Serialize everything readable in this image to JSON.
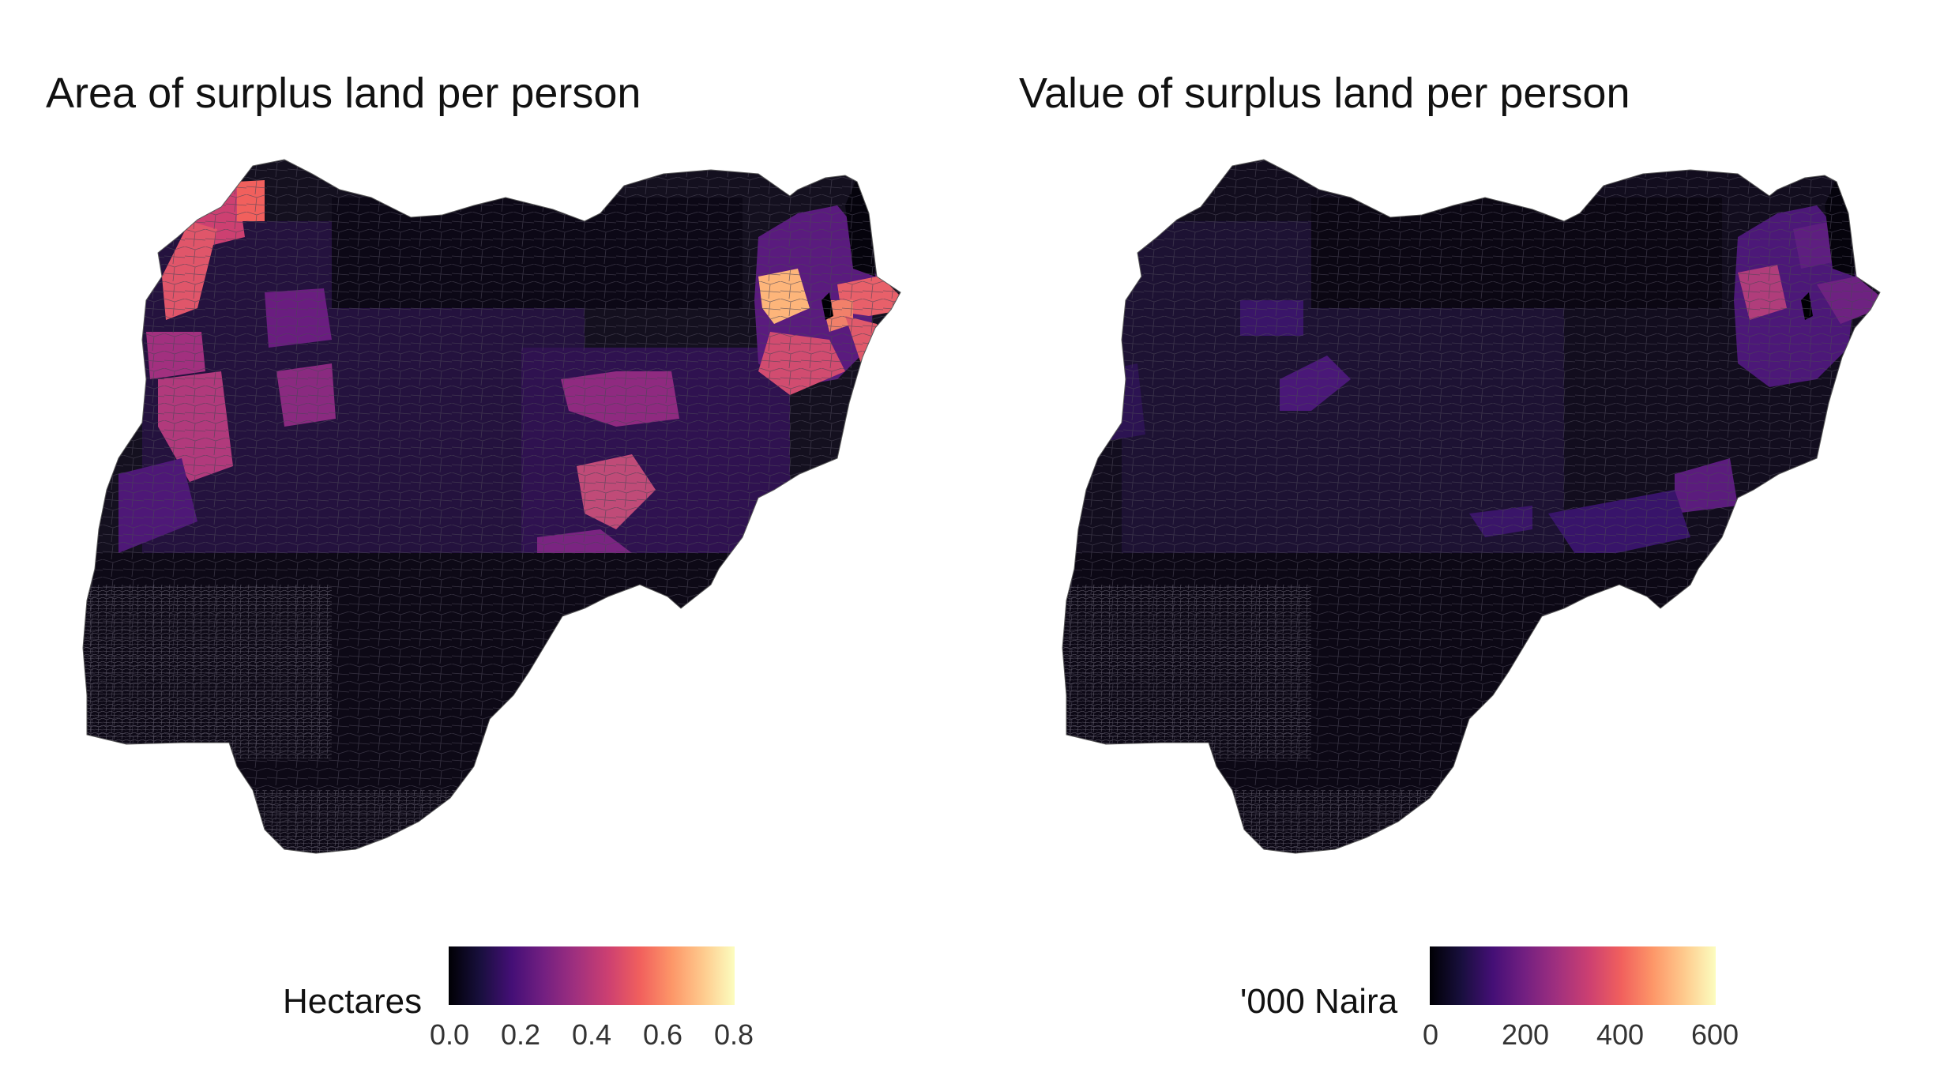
{
  "left_map": {
    "title": "Area of surplus land per person",
    "legend": {
      "title": "Hectares",
      "ticks": [
        "0.0",
        "0.2",
        "0.4",
        "0.6",
        "0.8"
      ],
      "tick_values": [
        0.0,
        0.2,
        0.4,
        0.6,
        0.8
      ],
      "range": [
        0.0,
        0.8
      ]
    },
    "palette": "magma"
  },
  "right_map": {
    "title": "Value of surplus land per person",
    "legend": {
      "title": "'000 Naira",
      "ticks": [
        "0",
        "200",
        "400",
        "600"
      ],
      "tick_values": [
        0,
        200,
        400,
        600
      ],
      "range": [
        0,
        600
      ]
    },
    "palette": "magma"
  },
  "colors": {
    "magma": [
      "#000004",
      "#180f3d",
      "#440f76",
      "#721f81",
      "#9e2f7f",
      "#cd4071",
      "#f1605d",
      "#fd9668",
      "#feca8d",
      "#fcfdbf"
    ],
    "boundary": "#5a5a5a",
    "base_fill": "#0f0a1e"
  }
}
